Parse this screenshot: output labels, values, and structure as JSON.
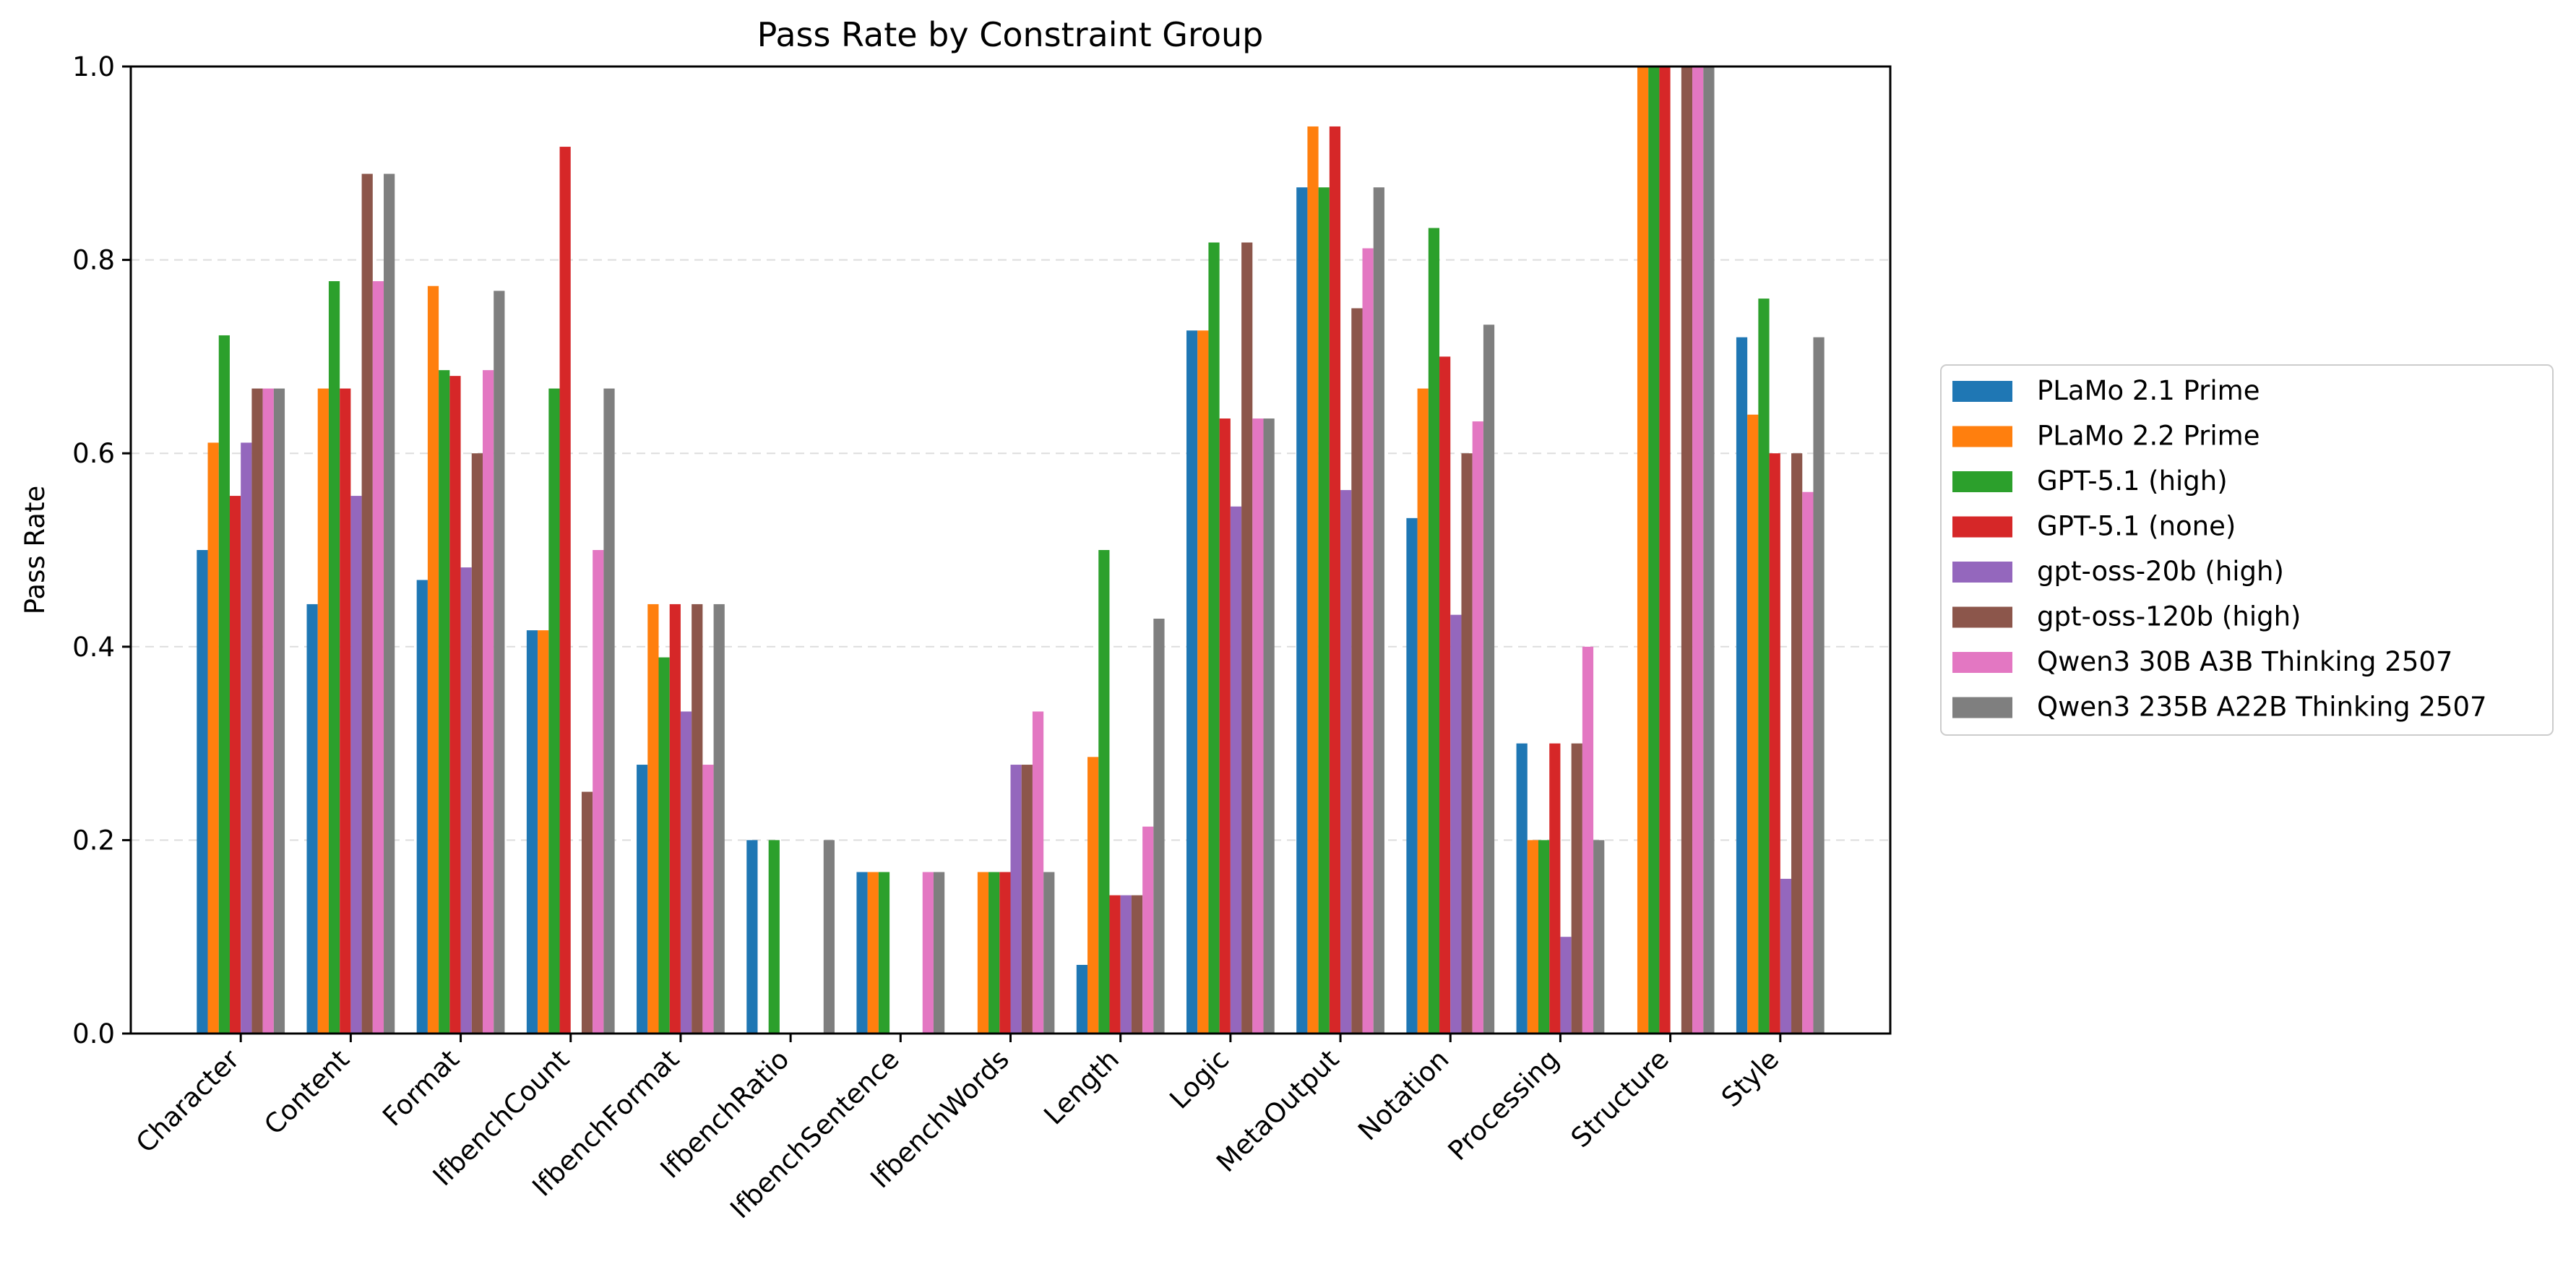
{
  "chart_data": {
    "type": "bar",
    "title": "Pass Rate by Constraint Group",
    "xlabel": "",
    "ylabel": "Pass Rate",
    "ylim": [
      0,
      1.0
    ],
    "yticks": [
      "0.0",
      "0.2",
      "0.4",
      "0.6",
      "0.8",
      "1.0"
    ],
    "grid": "horizontal dashed",
    "legend_position": "right, outside",
    "categories": [
      "Character",
      "Content",
      "Format",
      "IfbenchCount",
      "IfbenchFormat",
      "IfbenchRatio",
      "IfbenchSentence",
      "IfbenchWords",
      "Length",
      "Logic",
      "MetaOutput",
      "Notation",
      "Processing",
      "Structure",
      "Style"
    ],
    "series": [
      {
        "name": "PLaMo 2.1 Prime",
        "color": "#1f77b4",
        "values": [
          0.5,
          0.444,
          0.469,
          0.417,
          0.278,
          0.2,
          0.167,
          0.0,
          0.071,
          0.727,
          0.875,
          0.533,
          0.3,
          0.0,
          0.72
        ]
      },
      {
        "name": "PLaMo 2.2 Prime",
        "color": "#ff7f0e",
        "values": [
          0.611,
          0.667,
          0.773,
          0.417,
          0.444,
          0.0,
          0.167,
          0.167,
          0.286,
          0.727,
          0.938,
          0.667,
          0.2,
          1.0,
          0.64
        ]
      },
      {
        "name": "GPT-5.1 (high)",
        "color": "#2ca02c",
        "values": [
          0.722,
          0.778,
          0.686,
          0.667,
          0.389,
          0.2,
          0.167,
          0.167,
          0.5,
          0.818,
          0.875,
          0.833,
          0.2,
          1.0,
          0.76
        ]
      },
      {
        "name": "GPT-5.1 (none)",
        "color": "#d62728",
        "values": [
          0.556,
          0.667,
          0.68,
          0.917,
          0.444,
          0.0,
          0.0,
          0.167,
          0.143,
          0.636,
          0.938,
          0.7,
          0.3,
          1.0,
          0.6
        ]
      },
      {
        "name": "gpt-oss-20b (high)",
        "color": "#9467bd",
        "values": [
          0.611,
          0.556,
          0.482,
          0.0,
          0.333,
          0.0,
          0.0,
          0.278,
          0.143,
          0.545,
          0.562,
          0.433,
          0.1,
          0.0,
          0.16
        ]
      },
      {
        "name": "gpt-oss-120b (high)",
        "color": "#8c564b",
        "values": [
          0.667,
          0.889,
          0.6,
          0.25,
          0.444,
          0.0,
          0.0,
          0.278,
          0.143,
          0.818,
          0.75,
          0.6,
          0.3,
          1.0,
          0.6
        ]
      },
      {
        "name": "Qwen3 30B A3B Thinking 2507",
        "color": "#e377c2",
        "values": [
          0.667,
          0.778,
          0.686,
          0.5,
          0.278,
          0.0,
          0.167,
          0.333,
          0.214,
          0.636,
          0.812,
          0.633,
          0.4,
          1.0,
          0.56
        ]
      },
      {
        "name": "Qwen3 235B A22B Thinking 2507",
        "color": "#7f7f7f",
        "values": [
          0.667,
          0.889,
          0.768,
          0.667,
          0.444,
          0.2,
          0.167,
          0.167,
          0.429,
          0.636,
          0.875,
          0.733,
          0.2,
          1.0,
          0.72
        ]
      }
    ]
  }
}
